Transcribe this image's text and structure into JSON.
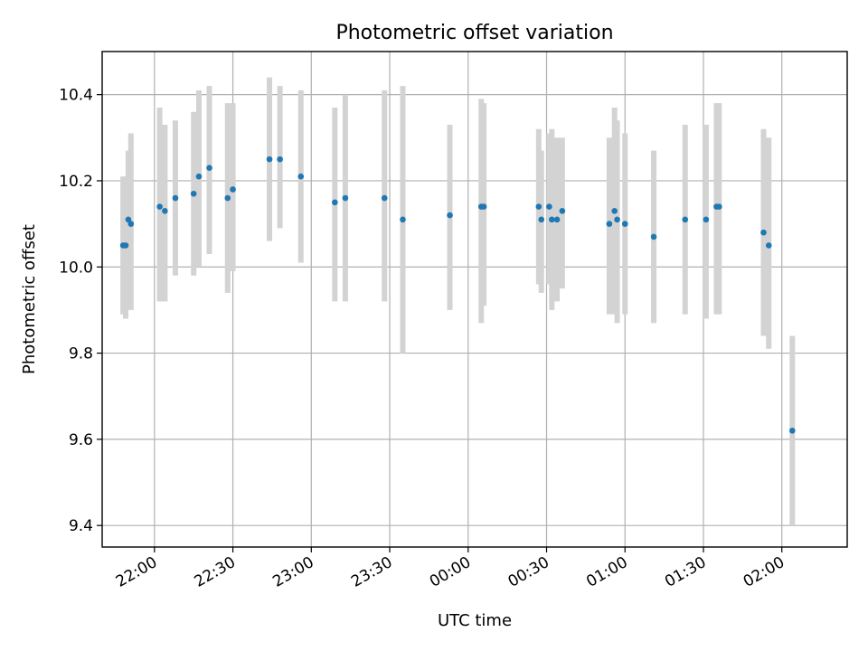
{
  "chart_data": {
    "type": "scatter",
    "title": "Photometric offset variation",
    "xlabel": "UTC time",
    "ylabel": "Photometric offset",
    "xlim": [
      "21:40",
      "02:25"
    ],
    "ylim": [
      9.35,
      10.5
    ],
    "x_ticks": [
      "22:00",
      "22:30",
      "23:00",
      "23:30",
      "00:00",
      "00:30",
      "01:00",
      "01:30",
      "02:00"
    ],
    "y_ticks": [
      "9.4",
      "9.6",
      "9.8",
      "10.0",
      "10.2",
      "10.4"
    ],
    "grid": true,
    "colors": {
      "point": "#1f77b4",
      "errorbar": "#d3d3d3"
    },
    "series": [
      {
        "points": [
          {
            "t": "21:48",
            "y": 10.05,
            "lo": 9.89,
            "hi": 10.21
          },
          {
            "t": "21:49",
            "y": 10.05,
            "lo": 9.88,
            "hi": 10.21
          },
          {
            "t": "21:50",
            "y": 10.11,
            "lo": 9.94,
            "hi": 10.27
          },
          {
            "t": "21:51",
            "y": 10.1,
            "lo": 9.9,
            "hi": 10.31
          },
          {
            "t": "22:02",
            "y": 10.14,
            "lo": 9.92,
            "hi": 10.37
          },
          {
            "t": "22:04",
            "y": 10.13,
            "lo": 9.92,
            "hi": 10.33
          },
          {
            "t": "22:08",
            "y": 10.16,
            "lo": 9.98,
            "hi": 10.34
          },
          {
            "t": "22:15",
            "y": 10.17,
            "lo": 9.98,
            "hi": 10.36
          },
          {
            "t": "22:17",
            "y": 10.21,
            "lo": 10.0,
            "hi": 10.41
          },
          {
            "t": "22:21",
            "y": 10.23,
            "lo": 10.03,
            "hi": 10.42
          },
          {
            "t": "22:28",
            "y": 10.16,
            "lo": 9.94,
            "hi": 10.38
          },
          {
            "t": "22:30",
            "y": 10.18,
            "lo": 9.99,
            "hi": 10.38
          },
          {
            "t": "22:44",
            "y": 10.25,
            "lo": 10.06,
            "hi": 10.44
          },
          {
            "t": "22:48",
            "y": 10.25,
            "lo": 10.09,
            "hi": 10.42
          },
          {
            "t": "22:56",
            "y": 10.21,
            "lo": 10.01,
            "hi": 10.41
          },
          {
            "t": "23:09",
            "y": 10.15,
            "lo": 9.92,
            "hi": 10.37
          },
          {
            "t": "23:13",
            "y": 10.16,
            "lo": 9.92,
            "hi": 10.4
          },
          {
            "t": "23:28",
            "y": 10.16,
            "lo": 9.92,
            "hi": 10.41
          },
          {
            "t": "23:35",
            "y": 10.11,
            "lo": 9.8,
            "hi": 10.42
          },
          {
            "t": "23:53",
            "y": 10.12,
            "lo": 9.9,
            "hi": 10.33
          },
          {
            "t": "00:05",
            "y": 10.14,
            "lo": 9.87,
            "hi": 10.39
          },
          {
            "t": "00:06",
            "y": 10.14,
            "lo": 9.91,
            "hi": 10.38
          },
          {
            "t": "00:27",
            "y": 10.14,
            "lo": 9.96,
            "hi": 10.32
          },
          {
            "t": "00:28",
            "y": 10.11,
            "lo": 9.94,
            "hi": 10.27
          },
          {
            "t": "00:31",
            "y": 10.14,
            "lo": 9.96,
            "hi": 10.31
          },
          {
            "t": "00:32",
            "y": 10.11,
            "lo": 9.9,
            "hi": 10.32
          },
          {
            "t": "00:34",
            "y": 10.11,
            "lo": 9.92,
            "hi": 10.3
          },
          {
            "t": "00:36",
            "y": 10.13,
            "lo": 9.95,
            "hi": 10.3
          },
          {
            "t": "00:54",
            "y": 10.1,
            "lo": 9.89,
            "hi": 10.3
          },
          {
            "t": "00:56",
            "y": 10.13,
            "lo": 9.89,
            "hi": 10.37
          },
          {
            "t": "00:57",
            "y": 10.11,
            "lo": 9.87,
            "hi": 10.34
          },
          {
            "t": "01:00",
            "y": 10.1,
            "lo": 9.89,
            "hi": 10.31
          },
          {
            "t": "01:11",
            "y": 10.07,
            "lo": 9.87,
            "hi": 10.27
          },
          {
            "t": "01:23",
            "y": 10.11,
            "lo": 9.89,
            "hi": 10.33
          },
          {
            "t": "01:31",
            "y": 10.11,
            "lo": 9.88,
            "hi": 10.33
          },
          {
            "t": "01:35",
            "y": 10.14,
            "lo": 9.89,
            "hi": 10.38
          },
          {
            "t": "01:36",
            "y": 10.14,
            "lo": 9.89,
            "hi": 10.38
          },
          {
            "t": "01:53",
            "y": 10.08,
            "lo": 9.84,
            "hi": 10.32
          },
          {
            "t": "01:55",
            "y": 10.05,
            "lo": 9.81,
            "hi": 10.3
          },
          {
            "t": "02:04",
            "y": 9.62,
            "lo": 9.4,
            "hi": 9.84
          }
        ]
      }
    ]
  }
}
